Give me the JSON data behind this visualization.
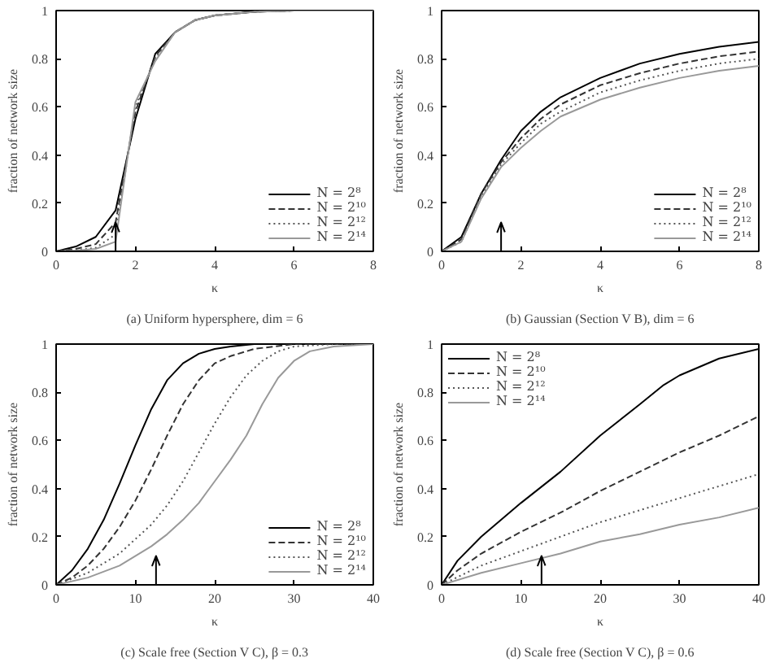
{
  "chart_data": [
    {
      "type": "line",
      "xlabel": "κ",
      "ylabel": "fraction of network size",
      "annotations": [
        "(a) Uniform hypersphere, dim = 6"
      ],
      "xlim": [
        0,
        8
      ],
      "ylim": [
        0,
        1
      ],
      "xticks": [
        0,
        2,
        4,
        6,
        8
      ],
      "yticks": [
        0,
        0.2,
        0.4,
        0.6,
        0.8,
        1
      ],
      "grid": false,
      "legend": "bottom right",
      "marker": "none",
      "ref_lines": [
        {
          "axis": "x",
          "value": 1.5
        }
      ],
      "series": [
        {
          "name": "N = 2⁸",
          "color": "#000000",
          "line_style": "solid",
          "x": [
            0,
            0.5,
            1,
            1.5,
            2,
            2.5,
            3,
            3.5,
            4,
            5,
            6,
            8
          ],
          "values": [
            0,
            0.02,
            0.06,
            0.17,
            0.55,
            0.82,
            0.91,
            0.96,
            0.98,
            0.995,
            1,
            1
          ]
        },
        {
          "name": "N = 2¹⁰",
          "color": "#333333",
          "line_style": "dashed",
          "x": [
            0,
            0.5,
            1,
            1.5,
            2,
            2.5,
            3,
            3.5,
            4,
            5,
            6,
            8
          ],
          "values": [
            0,
            0.01,
            0.03,
            0.12,
            0.58,
            0.81,
            0.91,
            0.96,
            0.98,
            0.995,
            1,
            1
          ]
        },
        {
          "name": "N = 2¹²",
          "color": "#555555",
          "line_style": "dotted",
          "x": [
            0,
            0.5,
            1,
            1.5,
            2,
            2.5,
            3,
            3.5,
            4,
            5,
            6,
            8
          ],
          "values": [
            0,
            0.005,
            0.015,
            0.07,
            0.6,
            0.8,
            0.91,
            0.96,
            0.98,
            0.995,
            1,
            1
          ]
        },
        {
          "name": "N = 2¹⁴",
          "color": "#999999",
          "line_style": "solid",
          "x": [
            0,
            0.5,
            1,
            1.5,
            2,
            2.5,
            3,
            3.5,
            4,
            5,
            6,
            8
          ],
          "values": [
            0,
            0.003,
            0.01,
            0.04,
            0.62,
            0.79,
            0.91,
            0.96,
            0.98,
            0.995,
            1,
            1
          ]
        }
      ]
    },
    {
      "type": "line",
      "xlabel": "κ",
      "ylabel": "fraction of network size",
      "annotations": [
        "(b) Gaussian (Section V B), dim = 6"
      ],
      "xlim": [
        0,
        8
      ],
      "ylim": [
        0,
        1
      ],
      "xticks": [
        0,
        2,
        4,
        6,
        8
      ],
      "yticks": [
        0,
        0.2,
        0.4,
        0.6,
        0.8,
        1
      ],
      "grid": false,
      "legend": "bottom right",
      "marker": "none",
      "ref_lines": [
        {
          "axis": "x",
          "value": 1.5
        }
      ],
      "series": [
        {
          "name": "N = 2⁸",
          "color": "#000000",
          "line_style": "solid",
          "x": [
            0,
            0.5,
            1,
            1.5,
            2,
            2.5,
            3,
            4,
            5,
            6,
            7,
            8
          ],
          "values": [
            0,
            0.06,
            0.24,
            0.38,
            0.5,
            0.58,
            0.64,
            0.72,
            0.78,
            0.82,
            0.85,
            0.87
          ]
        },
        {
          "name": "N = 2¹⁰",
          "color": "#333333",
          "line_style": "dashed",
          "x": [
            0,
            0.5,
            1,
            1.5,
            2,
            2.5,
            3,
            4,
            5,
            6,
            7,
            8
          ],
          "values": [
            0,
            0.05,
            0.24,
            0.37,
            0.47,
            0.55,
            0.61,
            0.69,
            0.74,
            0.78,
            0.81,
            0.83
          ]
        },
        {
          "name": "N = 2¹²",
          "color": "#555555",
          "line_style": "dotted",
          "x": [
            0,
            0.5,
            1,
            1.5,
            2,
            2.5,
            3,
            4,
            5,
            6,
            7,
            8
          ],
          "values": [
            0,
            0.04,
            0.23,
            0.36,
            0.45,
            0.53,
            0.58,
            0.66,
            0.71,
            0.75,
            0.78,
            0.8
          ]
        },
        {
          "name": "N = 2¹⁴",
          "color": "#999999",
          "line_style": "solid",
          "x": [
            0,
            0.5,
            1,
            1.5,
            2,
            2.5,
            3,
            4,
            5,
            6,
            7,
            8
          ],
          "values": [
            0,
            0.04,
            0.22,
            0.35,
            0.43,
            0.5,
            0.56,
            0.63,
            0.68,
            0.72,
            0.75,
            0.77
          ]
        }
      ]
    },
    {
      "type": "line",
      "xlabel": "κ",
      "ylabel": "fraction of network size",
      "annotations": [
        "(c) Scale free (Section V C), β = 0.3"
      ],
      "xlim": [
        0,
        40
      ],
      "ylim": [
        0,
        1
      ],
      "xticks": [
        0,
        10,
        20,
        30,
        40
      ],
      "yticks": [
        0,
        0.2,
        0.4,
        0.6,
        0.8,
        1
      ],
      "grid": false,
      "legend": "bottom right",
      "marker": "none",
      "ref_lines": [
        {
          "axis": "x",
          "value": 12.6
        }
      ],
      "series": [
        {
          "name": "N = 2⁸",
          "color": "#000000",
          "line_style": "solid",
          "x": [
            0,
            2,
            4,
            6,
            8,
            10,
            12,
            14,
            16,
            18,
            20,
            22,
            25,
            40
          ],
          "values": [
            0,
            0.06,
            0.15,
            0.27,
            0.42,
            0.58,
            0.73,
            0.85,
            0.92,
            0.96,
            0.98,
            0.99,
            1,
            1
          ]
        },
        {
          "name": "N = 2¹⁰",
          "color": "#333333",
          "line_style": "dashed",
          "x": [
            0,
            2,
            4,
            6,
            8,
            10,
            12,
            14,
            16,
            18,
            20,
            22,
            25,
            30,
            40
          ],
          "values": [
            0,
            0.03,
            0.08,
            0.15,
            0.24,
            0.35,
            0.48,
            0.62,
            0.75,
            0.85,
            0.92,
            0.95,
            0.98,
            1,
            1
          ]
        },
        {
          "name": "N = 2¹²",
          "color": "#555555",
          "line_style": "dotted",
          "x": [
            0,
            4,
            8,
            12,
            14,
            16,
            18,
            20,
            22,
            24,
            26,
            28,
            30,
            35,
            40
          ],
          "values": [
            0,
            0.05,
            0.13,
            0.25,
            0.33,
            0.43,
            0.55,
            0.67,
            0.78,
            0.87,
            0.93,
            0.97,
            0.99,
            1,
            1
          ]
        },
        {
          "name": "N = 2¹⁴",
          "color": "#999999",
          "line_style": "solid",
          "x": [
            0,
            4,
            8,
            12,
            14,
            16,
            18,
            20,
            22,
            24,
            26,
            28,
            30,
            32,
            35,
            40
          ],
          "values": [
            0,
            0.03,
            0.08,
            0.16,
            0.21,
            0.27,
            0.34,
            0.43,
            0.52,
            0.62,
            0.75,
            0.86,
            0.93,
            0.97,
            0.99,
            1
          ]
        }
      ]
    },
    {
      "type": "line",
      "xlabel": "κ",
      "ylabel": "fraction of network size",
      "annotations": [
        "(d) Scale free (Section V C), β = 0.6"
      ],
      "xlim": [
        0,
        40
      ],
      "ylim": [
        0,
        1
      ],
      "xticks": [
        0,
        10,
        20,
        30,
        40
      ],
      "yticks": [
        0,
        0.2,
        0.4,
        0.6,
        0.8,
        1
      ],
      "grid": false,
      "legend": "top left",
      "marker": "none",
      "ref_lines": [
        {
          "axis": "x",
          "value": 12.6
        }
      ],
      "series": [
        {
          "name": "N = 2⁸",
          "color": "#000000",
          "line_style": "solid",
          "x": [
            0,
            2,
            5,
            10,
            15,
            20,
            25,
            28,
            30,
            35,
            40
          ],
          "values": [
            0,
            0.1,
            0.2,
            0.34,
            0.47,
            0.62,
            0.75,
            0.83,
            0.87,
            0.94,
            0.98
          ]
        },
        {
          "name": "N = 2¹⁰",
          "color": "#333333",
          "line_style": "dashed",
          "x": [
            0,
            2,
            5,
            10,
            15,
            20,
            25,
            30,
            35,
            40
          ],
          "values": [
            0,
            0.06,
            0.13,
            0.22,
            0.3,
            0.39,
            0.47,
            0.55,
            0.62,
            0.7
          ]
        },
        {
          "name": "N = 2¹²",
          "color": "#555555",
          "line_style": "dotted",
          "x": [
            0,
            5,
            10,
            15,
            20,
            25,
            30,
            35,
            40
          ],
          "values": [
            0,
            0.08,
            0.14,
            0.2,
            0.26,
            0.31,
            0.36,
            0.41,
            0.46
          ]
        },
        {
          "name": "N = 2¹⁴",
          "color": "#999999",
          "line_style": "solid",
          "x": [
            0,
            5,
            10,
            15,
            20,
            25,
            30,
            35,
            40
          ],
          "values": [
            0,
            0.05,
            0.09,
            0.13,
            0.18,
            0.21,
            0.25,
            0.28,
            0.32
          ]
        }
      ]
    }
  ]
}
